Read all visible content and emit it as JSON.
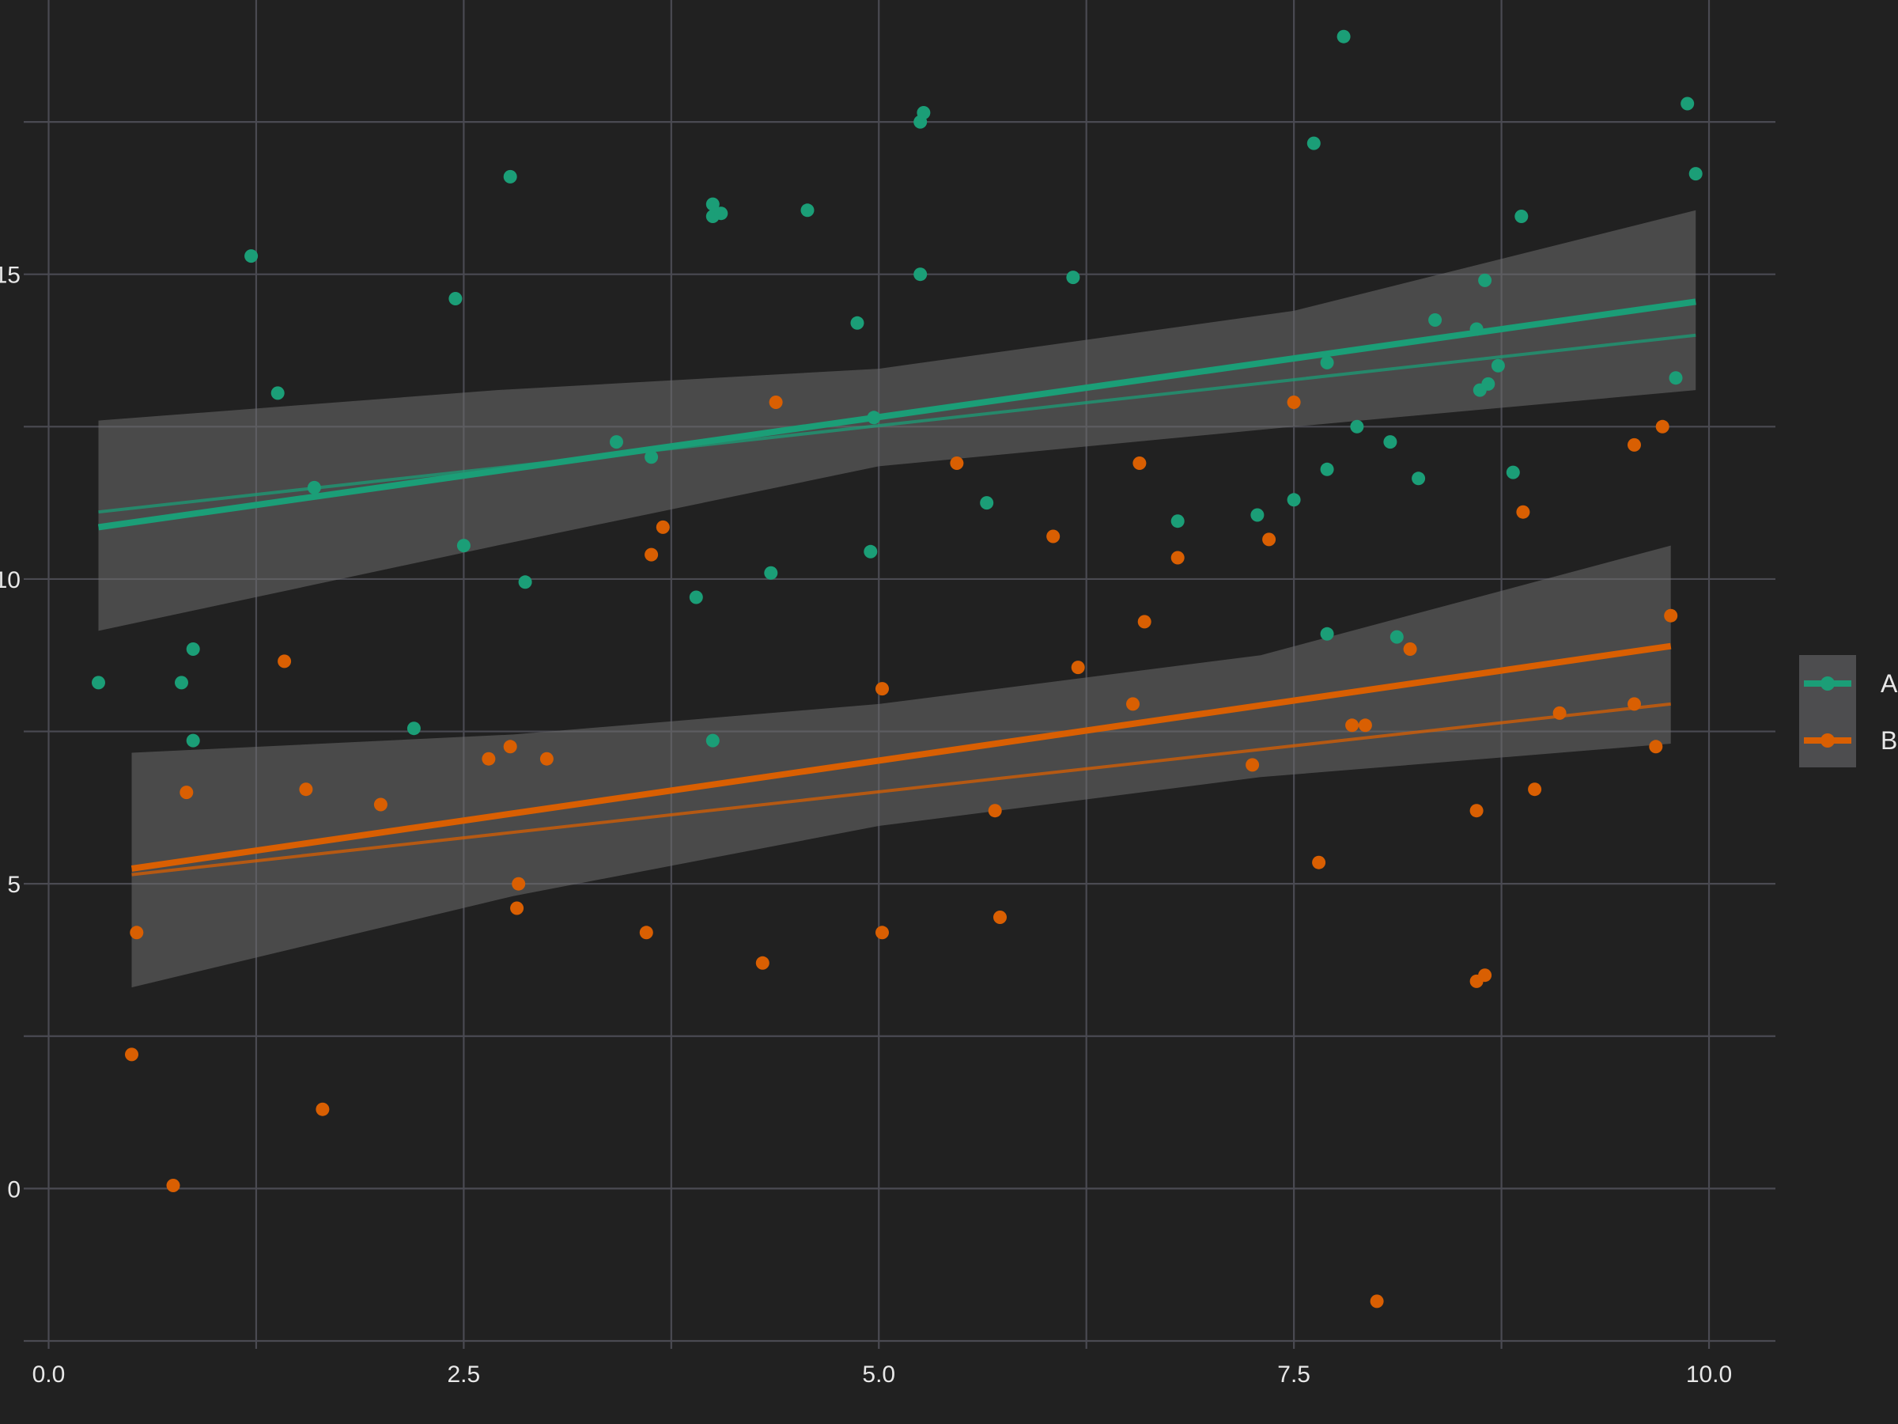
{
  "chart_data": {
    "type": "scatter",
    "title": "",
    "xlabel": "",
    "ylabel": "",
    "xlim": [
      -0.15,
      10.4
    ],
    "ylim": [
      -2.5,
      19.5
    ],
    "x_ticks": [
      0.0,
      2.5,
      5.0,
      7.5,
      10.0
    ],
    "x_tick_labels": [
      "0.0",
      "2.5",
      "5.0",
      "7.5",
      "10.0"
    ],
    "y_ticks": [
      0,
      5,
      10,
      15
    ],
    "y_tick_labels": [
      "0",
      "5",
      "10",
      "15"
    ],
    "x_minor_ticks": [
      1.25,
      3.75,
      6.25,
      8.75
    ],
    "y_minor_ticks": [
      2.5,
      7.5,
      12.5,
      17.5
    ],
    "grid": true,
    "legend_position": "right",
    "background_color": "#212121",
    "grid_color": "#4a4a52",
    "band_color": "#6e6e6e",
    "series": [
      {
        "name": "A",
        "color": "#1b9e77",
        "points": [
          [
            0.3,
            8.3
          ],
          [
            0.8,
            8.3
          ],
          [
            0.87,
            8.85
          ],
          [
            0.87,
            7.35
          ],
          [
            1.22,
            15.3
          ],
          [
            1.38,
            13.05
          ],
          [
            1.6,
            11.5
          ],
          [
            2.2,
            7.55
          ],
          [
            2.45,
            14.6
          ],
          [
            2.5,
            10.55
          ],
          [
            2.78,
            16.6
          ],
          [
            2.87,
            9.95
          ],
          [
            3.42,
            12.25
          ],
          [
            3.63,
            12.0
          ],
          [
            3.9,
            9.7
          ],
          [
            4.0,
            16.15
          ],
          [
            4.0,
            15.95
          ],
          [
            4.05,
            16.0
          ],
          [
            4.0,
            7.35
          ],
          [
            4.35,
            10.1
          ],
          [
            4.57,
            16.05
          ],
          [
            4.87,
            14.2
          ],
          [
            4.95,
            10.45
          ],
          [
            4.97,
            12.65
          ],
          [
            5.25,
            17.5
          ],
          [
            5.27,
            17.65
          ],
          [
            5.25,
            15.0
          ],
          [
            5.65,
            11.25
          ],
          [
            6.17,
            14.95
          ],
          [
            6.8,
            10.95
          ],
          [
            7.28,
            11.05
          ],
          [
            7.5,
            11.3
          ],
          [
            7.62,
            17.15
          ],
          [
            7.7,
            13.55
          ],
          [
            7.7,
            11.8
          ],
          [
            7.7,
            9.1
          ],
          [
            7.8,
            18.9
          ],
          [
            7.88,
            12.5
          ],
          [
            8.08,
            12.25
          ],
          [
            8.12,
            9.05
          ],
          [
            8.25,
            11.65
          ],
          [
            8.35,
            14.25
          ],
          [
            8.6,
            14.1
          ],
          [
            8.62,
            13.1
          ],
          [
            8.65,
            14.9
          ],
          [
            8.67,
            13.2
          ],
          [
            8.73,
            13.5
          ],
          [
            8.82,
            11.75
          ],
          [
            8.87,
            15.95
          ],
          [
            9.8,
            13.3
          ],
          [
            9.87,
            17.8
          ],
          [
            9.92,
            16.65
          ]
        ],
        "fit": {
          "x": [
            0.3,
            9.92
          ],
          "y": [
            10.85,
            14.55
          ]
        },
        "fit_alt": {
          "x": [
            0.3,
            9.92
          ],
          "y": [
            11.1,
            14.0
          ]
        },
        "band": {
          "x": [
            0.3,
            2.7,
            5.0,
            7.5,
            9.92
          ],
          "lower": [
            9.15,
            10.55,
            11.85,
            12.5,
            13.1
          ],
          "upper": [
            12.6,
            13.1,
            13.45,
            14.4,
            16.05
          ]
        }
      },
      {
        "name": "B",
        "color": "#d95f02",
        "points": [
          [
            0.5,
            2.2
          ],
          [
            0.53,
            4.2
          ],
          [
            0.75,
            0.05
          ],
          [
            0.83,
            6.5
          ],
          [
            1.42,
            8.65
          ],
          [
            1.55,
            6.55
          ],
          [
            1.65,
            1.3
          ],
          [
            2.0,
            6.3
          ],
          [
            2.65,
            7.05
          ],
          [
            2.78,
            7.25
          ],
          [
            2.82,
            4.6
          ],
          [
            2.83,
            5.0
          ],
          [
            3.0,
            7.05
          ],
          [
            3.6,
            4.2
          ],
          [
            3.63,
            10.4
          ],
          [
            3.7,
            10.85
          ],
          [
            4.3,
            3.7
          ],
          [
            4.38,
            12.9
          ],
          [
            5.02,
            8.2
          ],
          [
            5.02,
            4.2
          ],
          [
            5.47,
            11.9
          ],
          [
            5.7,
            6.2
          ],
          [
            5.73,
            4.45
          ],
          [
            6.05,
            10.7
          ],
          [
            6.2,
            8.55
          ],
          [
            6.53,
            7.95
          ],
          [
            6.57,
            11.9
          ],
          [
            6.6,
            9.3
          ],
          [
            6.8,
            10.35
          ],
          [
            7.25,
            6.95
          ],
          [
            7.35,
            10.65
          ],
          [
            7.5,
            12.9
          ],
          [
            7.65,
            5.35
          ],
          [
            7.85,
            7.6
          ],
          [
            7.93,
            7.6
          ],
          [
            8.0,
            -1.85
          ],
          [
            8.2,
            8.85
          ],
          [
            8.6,
            6.2
          ],
          [
            8.6,
            3.4
          ],
          [
            8.65,
            3.5
          ],
          [
            8.88,
            11.1
          ],
          [
            8.95,
            6.55
          ],
          [
            9.1,
            7.8
          ],
          [
            9.55,
            12.2
          ],
          [
            9.55,
            7.95
          ],
          [
            9.68,
            7.25
          ],
          [
            9.72,
            12.5
          ],
          [
            9.77,
            9.4
          ]
        ],
        "fit": {
          "x": [
            0.5,
            9.77
          ],
          "y": [
            5.25,
            8.9
          ]
        },
        "fit_alt": {
          "x": [
            0.5,
            9.77
          ],
          "y": [
            5.15,
            7.95
          ]
        },
        "band": {
          "x": [
            0.5,
            2.8,
            5.0,
            7.3,
            9.77
          ],
          "lower": [
            3.3,
            4.8,
            5.95,
            6.75,
            7.3
          ],
          "upper": [
            7.15,
            7.45,
            7.95,
            8.75,
            10.55
          ]
        }
      }
    ]
  }
}
